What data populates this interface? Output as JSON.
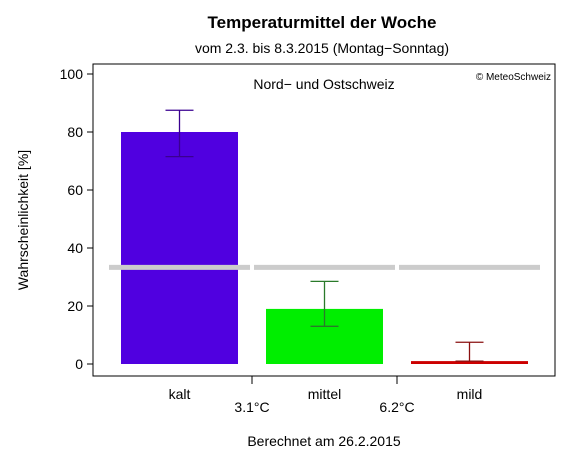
{
  "chart_data": {
    "type": "bar",
    "title": "Temperaturmittel der Woche",
    "subtitle": "vom 2.3. bis 8.3.2015 (Montag−Sonntag)",
    "region_label": "Nord− und Ostschweiz",
    "copyright": "© MeteoSchweiz",
    "ylabel": "Wahrscheinlichkeit [%]",
    "xlabel": "Berechnet am 26.2.2015",
    "ylim": [
      0,
      100
    ],
    "yticks": [
      0,
      20,
      40,
      60,
      80,
      100
    ],
    "categories": [
      "kalt",
      "mittel",
      "mild"
    ],
    "values": [
      80,
      19,
      1
    ],
    "error_low": [
      71.5,
      13,
      1
    ],
    "error_high": [
      87.5,
      28.5,
      7.5
    ],
    "colors": [
      "#5000e0",
      "#00ee00",
      "#cc0000"
    ],
    "error_colors": [
      "#3a0090",
      "#2a7a2a",
      "#8a1010"
    ],
    "thresholds": [
      "3.1°C",
      "6.2°C"
    ],
    "reference_level": 33.3,
    "reference_color": "#cccccc"
  }
}
